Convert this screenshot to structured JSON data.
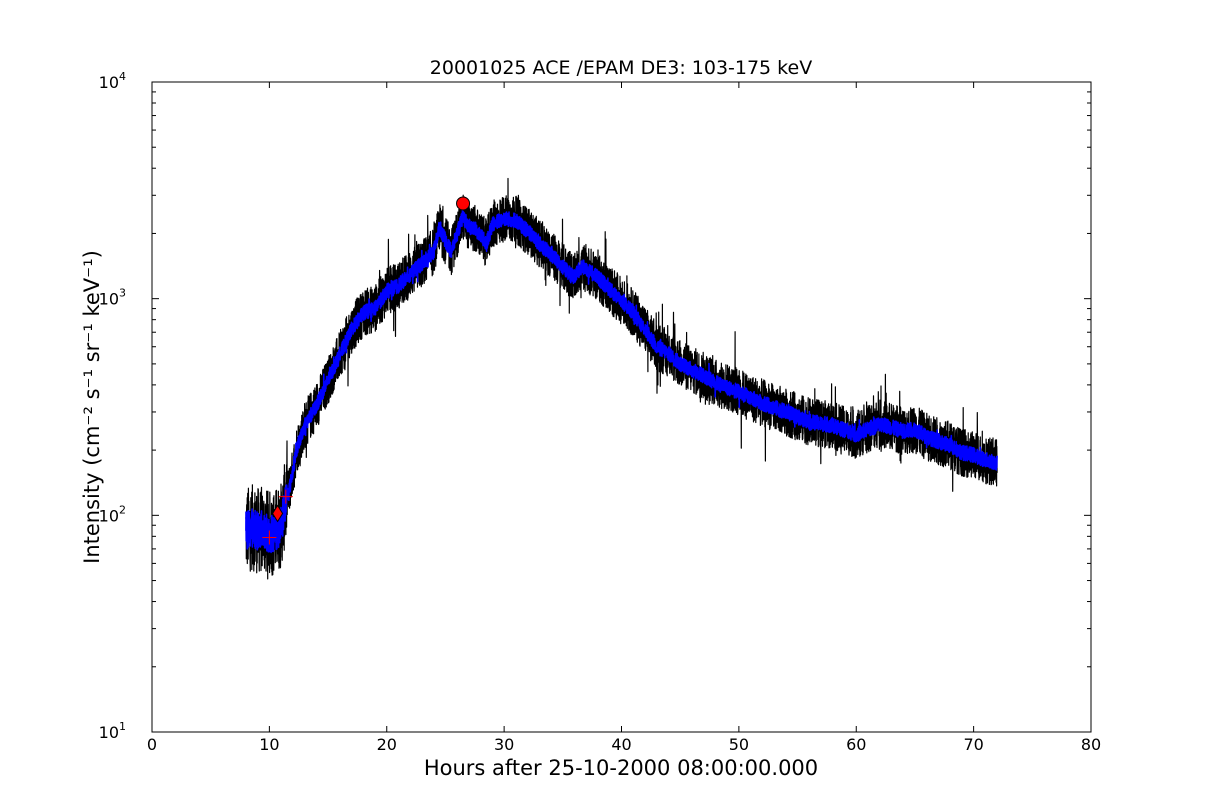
{
  "chart_data": {
    "type": "line",
    "title": "20001025 ACE /EPAM DE3: 103-175 keV",
    "xlabel": "Hours after 25-10-2000 08:00:00.000",
    "ylabel": "Intensity (cm⁻² s⁻¹ sr⁻¹ keV⁻¹)",
    "xlim": [
      0,
      80
    ],
    "ylim": [
      10,
      10000
    ],
    "yscale": "log",
    "grid": false,
    "x_ticks": [
      "0",
      "10",
      "20",
      "30",
      "40",
      "50",
      "60",
      "70",
      "80"
    ],
    "y_ticks": [
      {
        "base": "10",
        "exp": "1"
      },
      {
        "base": "10",
        "exp": "2"
      },
      {
        "base": "10",
        "exp": "3"
      },
      {
        "base": "10",
        "exp": "4"
      }
    ],
    "series": [
      {
        "color": "#000000",
        "style": "noisy raw data (wide spread)",
        "x": [
          8,
          8.5,
          9,
          9.5,
          10,
          10.5,
          11,
          11.3,
          11.8,
          12.3,
          13,
          14,
          15,
          16,
          17,
          18,
          19,
          20,
          21,
          22,
          23,
          24,
          24.5,
          25,
          25.5,
          26,
          26.5,
          27,
          27.5,
          28,
          28.5,
          29,
          30,
          31,
          32,
          33,
          34,
          35,
          36,
          36.5,
          37,
          38,
          39,
          40,
          41,
          42,
          43,
          44,
          45,
          46,
          47,
          48,
          50,
          52,
          54,
          56,
          58,
          60,
          61,
          62,
          63,
          64,
          65,
          66,
          67,
          68,
          69,
          70,
          71,
          72
        ],
        "y": [
          85,
          88,
          85,
          86,
          82,
          84,
          90,
          110,
          140,
          200,
          260,
          320,
          420,
          550,
          720,
          860,
          900,
          1080,
          1150,
          1300,
          1450,
          1650,
          2150,
          1850,
          1650,
          2000,
          2400,
          2150,
          2100,
          1950,
          1800,
          2200,
          2350,
          2300,
          2050,
          1800,
          1600,
          1400,
          1250,
          1400,
          1380,
          1250,
          1100,
          980,
          860,
          720,
          600,
          560,
          500,
          470,
          440,
          410,
          370,
          330,
          300,
          270,
          260,
          235,
          250,
          265,
          255,
          245,
          250,
          230,
          220,
          210,
          195,
          190,
          180,
          175
        ]
      },
      {
        "color": "#0000ff",
        "style": "smoothed data (narrow band)",
        "x": [
          8,
          8.5,
          9,
          9.5,
          10,
          10.5,
          11,
          11.3,
          11.8,
          12.3,
          13,
          14,
          15,
          16,
          17,
          18,
          19,
          20,
          21,
          22,
          23,
          24,
          24.5,
          25,
          25.5,
          26,
          26.5,
          27,
          27.5,
          28,
          28.5,
          29,
          30,
          31,
          32,
          33,
          34,
          35,
          36,
          36.5,
          37,
          38,
          39,
          40,
          41,
          42,
          43,
          44,
          45,
          46,
          47,
          48,
          50,
          52,
          54,
          56,
          58,
          60,
          61,
          62,
          63,
          64,
          65,
          66,
          67,
          68,
          69,
          70,
          71,
          72
        ],
        "y": [
          85,
          88,
          85,
          86,
          82,
          84,
          90,
          110,
          140,
          200,
          260,
          320,
          420,
          550,
          720,
          860,
          900,
          1080,
          1150,
          1300,
          1450,
          1650,
          2150,
          1850,
          1650,
          2000,
          2400,
          2150,
          2100,
          1950,
          1800,
          2200,
          2350,
          2300,
          2050,
          1800,
          1600,
          1400,
          1250,
          1400,
          1380,
          1250,
          1100,
          980,
          860,
          720,
          600,
          560,
          500,
          470,
          440,
          410,
          370,
          330,
          300,
          270,
          260,
          235,
          250,
          265,
          255,
          245,
          250,
          230,
          220,
          210,
          195,
          190,
          180,
          175
        ]
      }
    ],
    "markers": [
      {
        "type": "plus",
        "x": 10.0,
        "y": 79,
        "color": "#ff0000"
      },
      {
        "type": "plus",
        "x": 11.4,
        "y": 122,
        "color": "#ff0000"
      },
      {
        "type": "diamond",
        "x": 10.7,
        "y": 102,
        "color": "#ff0000"
      },
      {
        "type": "circle",
        "x": 26.5,
        "y": 2750,
        "color": "#ff0000"
      }
    ]
  }
}
